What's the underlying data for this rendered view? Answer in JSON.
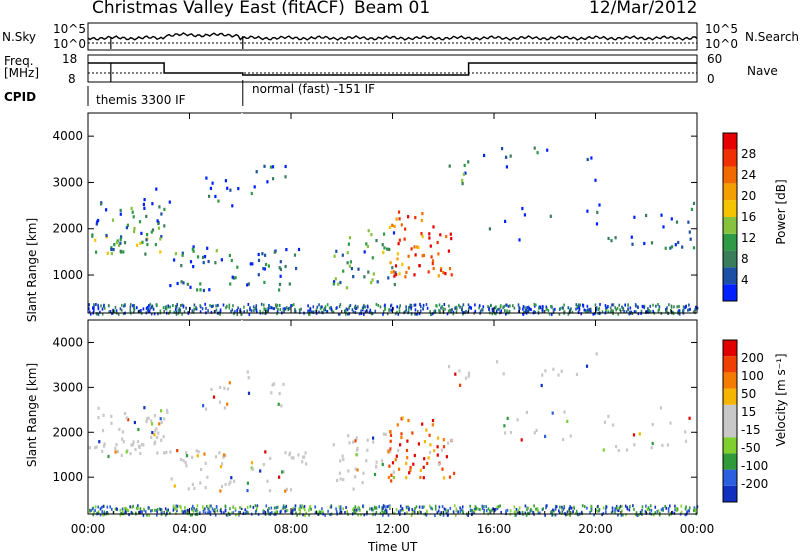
{
  "header": {
    "station_title": "Christmas Valley East (fitACF)",
    "beam": "Beam 01",
    "date": "12/Mar/2012"
  },
  "panels": {
    "nsky": {
      "label": "N.Sky",
      "tick_top": "10^5",
      "tick_bottom": "10^0"
    },
    "nsearch": {
      "label": "N.Search",
      "tick_top": "10^5",
      "tick_bottom": "10^0"
    },
    "freq": {
      "label_line1": "Freq.",
      "label_line2": "[MHz]",
      "tick_top": "18",
      "tick_bottom": "8"
    },
    "nave": {
      "label": "Nave",
      "tick_top": "60",
      "tick_bottom": "0"
    },
    "cpid": {
      "label": "CPID",
      "mode1": "themis 3300 IF",
      "mode2": "normal (fast) -151 IF"
    }
  },
  "colors": {
    "power_scale": [
      "#0020ff",
      "#1c4fa6",
      "#3a7d5a",
      "#2e9a45",
      "#86c23c",
      "#f5c400",
      "#f59e00",
      "#f06a00",
      "#f03000",
      "#e60000"
    ],
    "velocity_scale": [
      "#1030c0",
      "#2a60e0",
      "#2f9a3a",
      "#7fcf2f",
      "#c8c8c8",
      "#c8c8c8",
      "#f5b400",
      "#f57a00",
      "#f04000",
      "#e00000"
    ]
  },
  "chart_data": [
    {
      "type": "heatmap",
      "name": "power",
      "ylabel": "Slant Range [km]",
      "y_ticks": [
        "1000",
        "2000",
        "3000",
        "4000"
      ],
      "y_tick_values": [
        1000,
        2000,
        3000,
        4000
      ],
      "ylim": [
        180,
        4500
      ],
      "colorbar": {
        "label": "Power [dB]",
        "ticks": [
          "4",
          "8",
          "12",
          "16",
          "20",
          "24",
          "28"
        ],
        "tick_values": [
          4,
          8,
          12,
          16,
          20,
          24,
          28
        ],
        "range": [
          0,
          32
        ]
      }
    },
    {
      "type": "heatmap",
      "name": "velocity",
      "ylabel": "Slant Range [km]",
      "y_ticks": [
        "1000",
        "2000",
        "3000",
        "4000"
      ],
      "y_tick_values": [
        1000,
        2000,
        3000,
        4000
      ],
      "ylim": [
        180,
        4500
      ],
      "colorbar": {
        "label": "Velocity [m s⁻¹]",
        "ticks": [
          "200",
          "100",
          "50",
          "15",
          "-15",
          "-50",
          "-100",
          "-200"
        ]
      }
    }
  ],
  "x_axis": {
    "xlabel": "Time UT",
    "ticks": [
      "00:00",
      "04:00",
      "08:00",
      "12:00",
      "16:00",
      "20:00",
      "00:00"
    ],
    "tick_hours": [
      0,
      4,
      8,
      12,
      16,
      20,
      24
    ],
    "xlim_hours": [
      0,
      24
    ]
  }
}
